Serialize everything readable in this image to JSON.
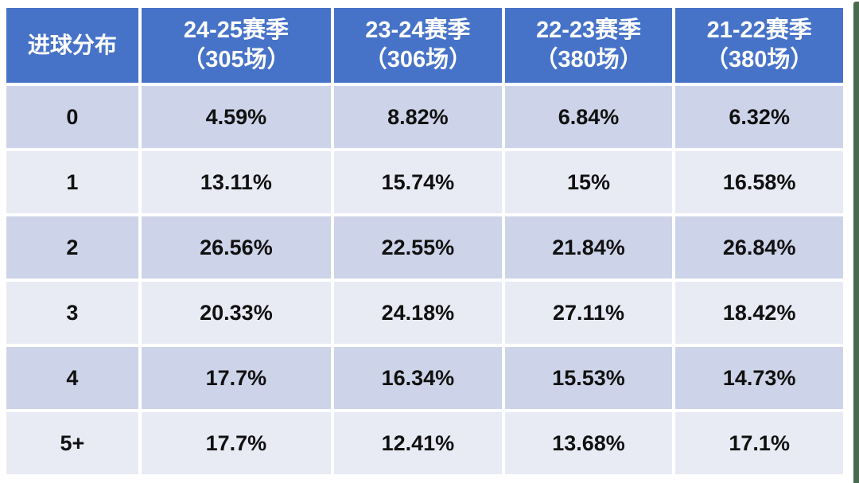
{
  "colors": {
    "header_bg": "#4673C8",
    "header_text": "#FFFFFF",
    "band_dark": "#CDD3E8",
    "band_light": "#E9EBF4",
    "body_text": "#111111",
    "page_edge_green": "#4A6B50",
    "page_bg": "#FFFFFF"
  },
  "chart_data": {
    "type": "table",
    "title": "进球分布",
    "legend_position": "none",
    "columns": [
      {
        "title": "进球分布",
        "subtitle": ""
      },
      {
        "title": "24-25赛季",
        "subtitle": "（305场）"
      },
      {
        "title": "23-24赛季",
        "subtitle": "（306场）"
      },
      {
        "title": "22-23赛季",
        "subtitle": "（380场）"
      },
      {
        "title": "21-22赛季",
        "subtitle": "（380场）"
      }
    ],
    "rows": [
      {
        "label": "0",
        "values": [
          "4.59%",
          "8.82%",
          "6.84%",
          "6.32%"
        ]
      },
      {
        "label": "1",
        "values": [
          "13.11%",
          "15.74%",
          "15%",
          "16.58%"
        ]
      },
      {
        "label": "2",
        "values": [
          "26.56%",
          "22.55%",
          "21.84%",
          "26.84%"
        ]
      },
      {
        "label": "3",
        "values": [
          "20.33%",
          "24.18%",
          "27.11%",
          "18.42%"
        ]
      },
      {
        "label": "4",
        "values": [
          "17.7%",
          "16.34%",
          "15.53%",
          "14.73%"
        ]
      },
      {
        "label": "5+",
        "values": [
          "17.7%",
          "12.41%",
          "13.68%",
          "17.1%"
        ]
      }
    ]
  }
}
